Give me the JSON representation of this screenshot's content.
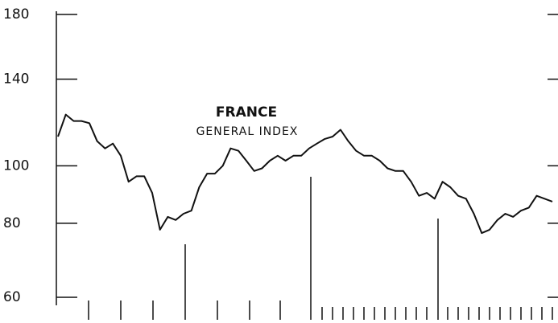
{
  "chart_data": {
    "type": "line",
    "title": "FRANCE",
    "subtitle": "GENERAL INDEX",
    "values": [
      112,
      122,
      119,
      119,
      118,
      110,
      107,
      109,
      104,
      94,
      96,
      96,
      90,
      78,
      82,
      81,
      83,
      84,
      92,
      97,
      97,
      100,
      107,
      106,
      102,
      98,
      99,
      102,
      104,
      102,
      104,
      104,
      107,
      109,
      111,
      112,
      115,
      110,
      106,
      104,
      104,
      102,
      99,
      98,
      98,
      94,
      89,
      90,
      88,
      94,
      92,
      89,
      88,
      83,
      77,
      78,
      81,
      83,
      82,
      84,
      85,
      89,
      88,
      87
    ],
    "color": "#111111",
    "ylim": [
      60,
      180
    ],
    "yticks": [
      60,
      80,
      100,
      140,
      180
    ],
    "log_scale": true
  }
}
